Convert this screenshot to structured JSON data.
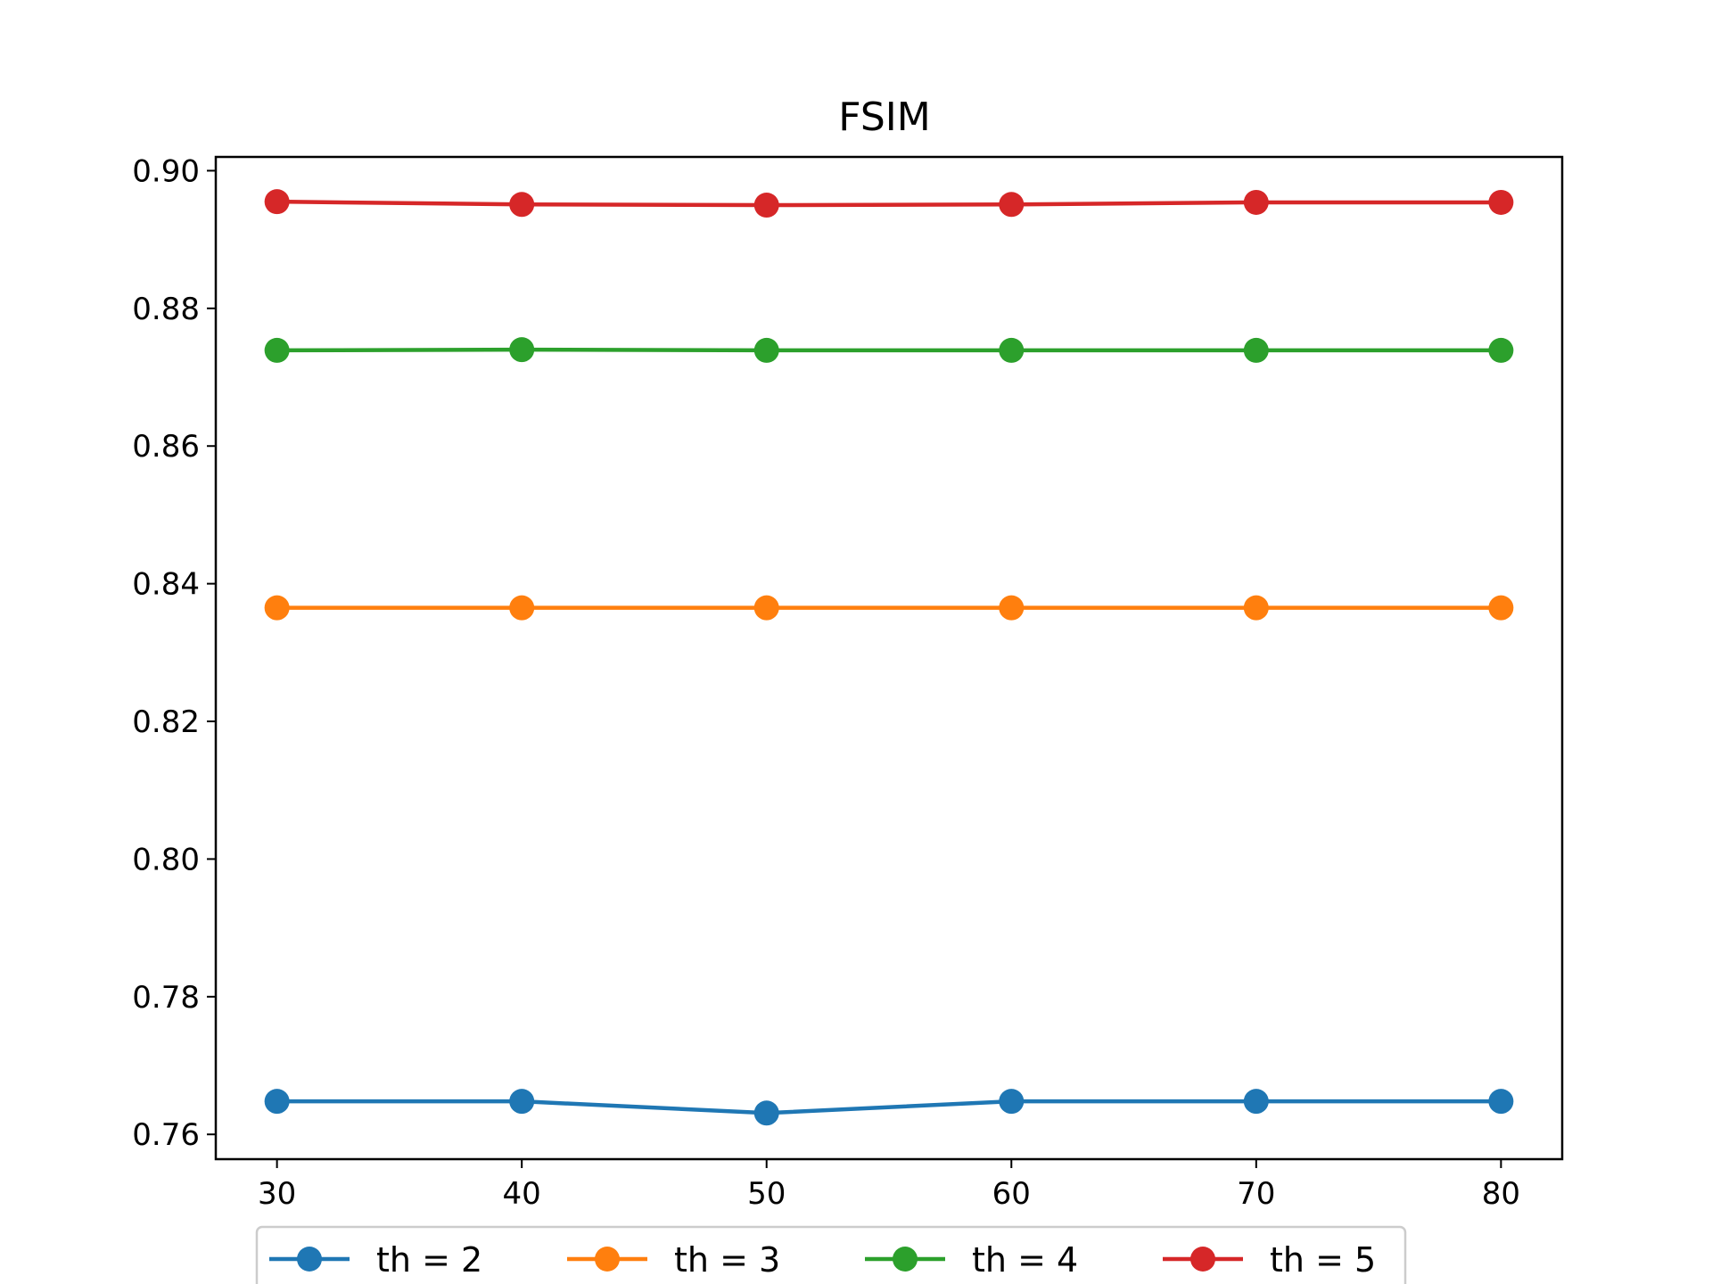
{
  "chart_data": {
    "type": "line",
    "title": "FSIM",
    "xlabel": "",
    "ylabel": "",
    "x": [
      30,
      40,
      50,
      60,
      70,
      80
    ],
    "xlim": [
      27.5,
      82.5
    ],
    "ylim": [
      0.7564,
      0.902
    ],
    "xticks": [
      30,
      40,
      50,
      60,
      70,
      80
    ],
    "yticks": [
      0.76,
      0.78,
      0.8,
      0.82,
      0.84,
      0.86,
      0.88,
      0.9
    ],
    "ytick_labels": [
      "0.76",
      "0.78",
      "0.80",
      "0.82",
      "0.84",
      "0.86",
      "0.88",
      "0.90"
    ],
    "grid": false,
    "legend_position": "bottom-center",
    "series": [
      {
        "name": "th = 2",
        "color": "#1f77b4",
        "values": [
          0.7648,
          0.7648,
          0.7631,
          0.7648,
          0.7648,
          0.7648
        ]
      },
      {
        "name": "th = 3",
        "color": "#ff7f0e",
        "values": [
          0.8365,
          0.8365,
          0.8365,
          0.8365,
          0.8365,
          0.8365
        ]
      },
      {
        "name": "th = 4",
        "color": "#2ca02c",
        "values": [
          0.8739,
          0.874,
          0.8739,
          0.8739,
          0.8739,
          0.8739
        ]
      },
      {
        "name": "th = 5",
        "color": "#d62728",
        "values": [
          0.8955,
          0.8951,
          0.895,
          0.8951,
          0.8954,
          0.8954
        ]
      }
    ]
  }
}
